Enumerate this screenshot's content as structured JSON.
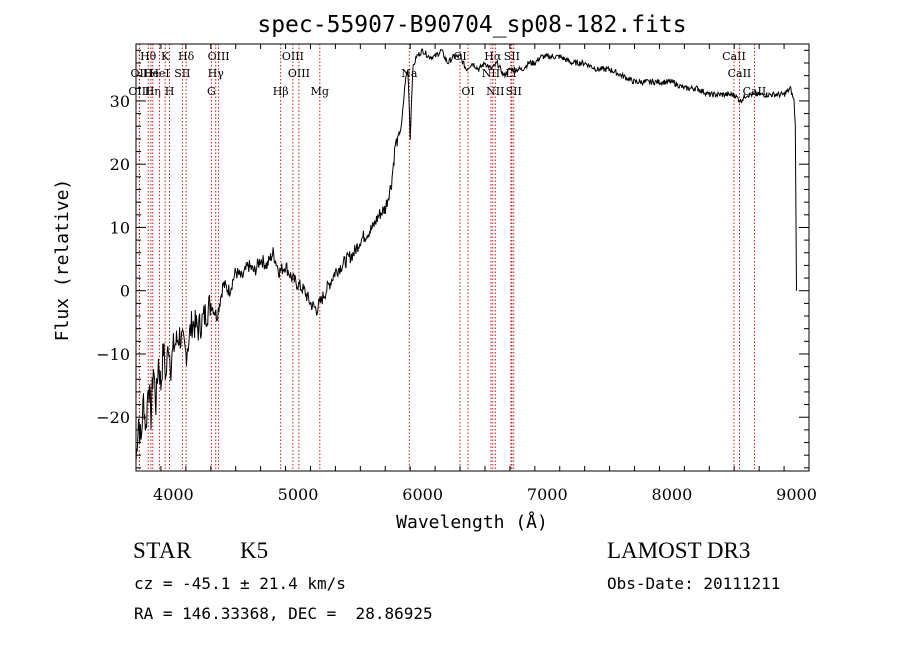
{
  "chart_data": {
    "type": "line",
    "title": "spec-55907-B90704_sp08-182.fits",
    "xlabel": "Wavelength (Å)",
    "ylabel": "Flux (relative)",
    "xlim": [
      3700,
      9100
    ],
    "ylim": [
      -28.5,
      39
    ],
    "xticks": [
      4000,
      5000,
      6000,
      7000,
      8000,
      9000
    ],
    "yticks": [
      -20,
      -10,
      0,
      10,
      20,
      30
    ],
    "series": [
      {
        "name": "flux",
        "x": [
          3700,
          3720,
          3740,
          3760,
          3780,
          3800,
          3820,
          3840,
          3860,
          3880,
          3900,
          3920,
          3940,
          3960,
          3980,
          4000,
          4050,
          4100,
          4150,
          4200,
          4250,
          4300,
          4350,
          4400,
          4450,
          4500,
          4550,
          4600,
          4650,
          4700,
          4750,
          4800,
          4850,
          4900,
          4950,
          5000,
          5050,
          5100,
          5150,
          5200,
          5250,
          5300,
          5350,
          5400,
          5450,
          5500,
          5550,
          5600,
          5650,
          5700,
          5750,
          5780,
          5800,
          5830,
          5860,
          5880,
          5890,
          5900,
          5920,
          5950,
          6000,
          6050,
          6100,
          6150,
          6200,
          6250,
          6300,
          6350,
          6400,
          6450,
          6500,
          6550,
          6600,
          6650,
          6700,
          6750,
          6800,
          6850,
          6900,
          6950,
          7000,
          7100,
          7200,
          7300,
          7400,
          7500,
          7600,
          7700,
          7800,
          7900,
          8000,
          8100,
          8200,
          8300,
          8400,
          8500,
          8550,
          8600,
          8650,
          8700,
          8750,
          8800,
          8850,
          8900,
          8950,
          8980,
          8990,
          9000
        ],
        "y": [
          -27,
          -20,
          -24,
          -17,
          -22,
          -14,
          -20,
          -12,
          -18,
          -11,
          -15,
          -9,
          -14,
          -8,
          -12,
          -9,
          -7,
          -10,
          -5,
          -6,
          -4,
          -2,
          -4,
          1,
          0,
          3,
          2,
          4,
          3,
          5,
          4,
          6,
          3,
          4,
          2,
          1,
          0,
          -2,
          -3,
          -1,
          1,
          3,
          4,
          5,
          6,
          8,
          9,
          10,
          12,
          13,
          17,
          23,
          24,
          26,
          33,
          35,
          31,
          24,
          35,
          37,
          38,
          37,
          37,
          38,
          36,
          37,
          37,
          35,
          36,
          35,
          36,
          35,
          36,
          34,
          35,
          35,
          35,
          36,
          36,
          37,
          37,
          37,
          36,
          36,
          35,
          35,
          34,
          33,
          33,
          33,
          33,
          32,
          32,
          31,
          31,
          31,
          30,
          31,
          31,
          31,
          31,
          31,
          31,
          31,
          32,
          30,
          26,
          0
        ]
      }
    ],
    "line_markers": [
      {
        "name": "Hθ",
        "wavelength": 3798,
        "row": 1
      },
      {
        "name": "OII",
        "wavelength": 3727,
        "row": 2
      },
      {
        "name": "OIII",
        "wavelength": 3727,
        "row": 3
      },
      {
        "name": "He",
        "wavelength": 3820,
        "row": 2
      },
      {
        "name": "Hη",
        "wavelength": 3835,
        "row": 3
      },
      {
        "name": "K",
        "wavelength": 3934,
        "row": 1
      },
      {
        "name": "HeI",
        "wavelength": 3889,
        "row": 2
      },
      {
        "name": "H",
        "wavelength": 3969,
        "row": 3
      },
      {
        "name": "SII",
        "wavelength": 4072,
        "row": 2
      },
      {
        "name": "Hδ",
        "wavelength": 4102,
        "row": 1
      },
      {
        "name": "OIII",
        "wavelength": 4363,
        "row": 1
      },
      {
        "name": "Hγ",
        "wavelength": 4340,
        "row": 2
      },
      {
        "name": "G",
        "wavelength": 4305,
        "row": 3
      },
      {
        "name": "Hβ",
        "wavelength": 4861,
        "row": 3
      },
      {
        "name": "OIII",
        "wavelength": 4959,
        "row": 1
      },
      {
        "name": "OIII",
        "wavelength": 5007,
        "row": 2
      },
      {
        "name": "Mg",
        "wavelength": 5175,
        "row": 3
      },
      {
        "name": "Na",
        "wavelength": 5893,
        "row": 2
      },
      {
        "name": "OI",
        "wavelength": 6300,
        "row": 1
      },
      {
        "name": "OI",
        "wavelength": 6364,
        "row": 3
      },
      {
        "name": "Hα",
        "wavelength": 6563,
        "row": 1
      },
      {
        "name": "NII",
        "wavelength": 6548,
        "row": 2
      },
      {
        "name": "NII",
        "wavelength": 6583,
        "row": 3
      },
      {
        "name": "SII",
        "wavelength": 6716,
        "row": 1
      },
      {
        "name": "Li",
        "wavelength": 6708,
        "row": 2
      },
      {
        "name": "SII",
        "wavelength": 6731,
        "row": 3
      },
      {
        "name": "CaII",
        "wavelength": 8498,
        "row": 1
      },
      {
        "name": "CaII",
        "wavelength": 8542,
        "row": 2
      },
      {
        "name": "CaII",
        "wavelength": 8662,
        "row": 3
      }
    ]
  },
  "info": {
    "object_class": "STAR",
    "subclass": "K5",
    "survey": "LAMOST DR3",
    "cz": "cz = -45.1 ± 21.4 km/s",
    "obs_date": "Obs-Date: 20111211",
    "radec": "RA = 146.33368, DEC =  28.86925"
  },
  "colors": {
    "line": "#000000",
    "marker": "#cc0000",
    "background": "#ffffff"
  }
}
